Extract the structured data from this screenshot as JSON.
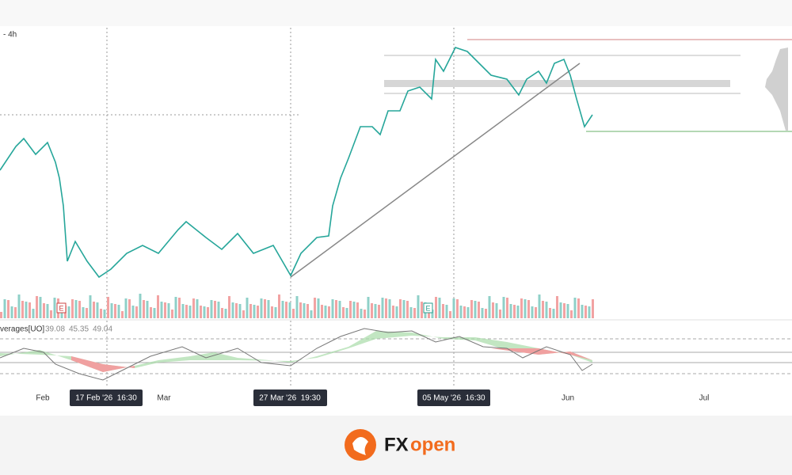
{
  "toolbar": {
    "interval": "- 4h"
  },
  "indicator": {
    "name": "verages[UO]",
    "values": [
      "39.08",
      "45.35",
      "49.04"
    ]
  },
  "time_axis": {
    "labels": [
      "Feb",
      "Mar",
      "Jun",
      "Jul"
    ],
    "crosshair_labels": [
      "17 Feb '26  16:30",
      "27 Mar '26  19:30",
      "05 May '26  16:30"
    ]
  },
  "earnings_markers": [
    "E",
    "E"
  ],
  "brand": {
    "part1": "FX",
    "part2": "open"
  }
}
